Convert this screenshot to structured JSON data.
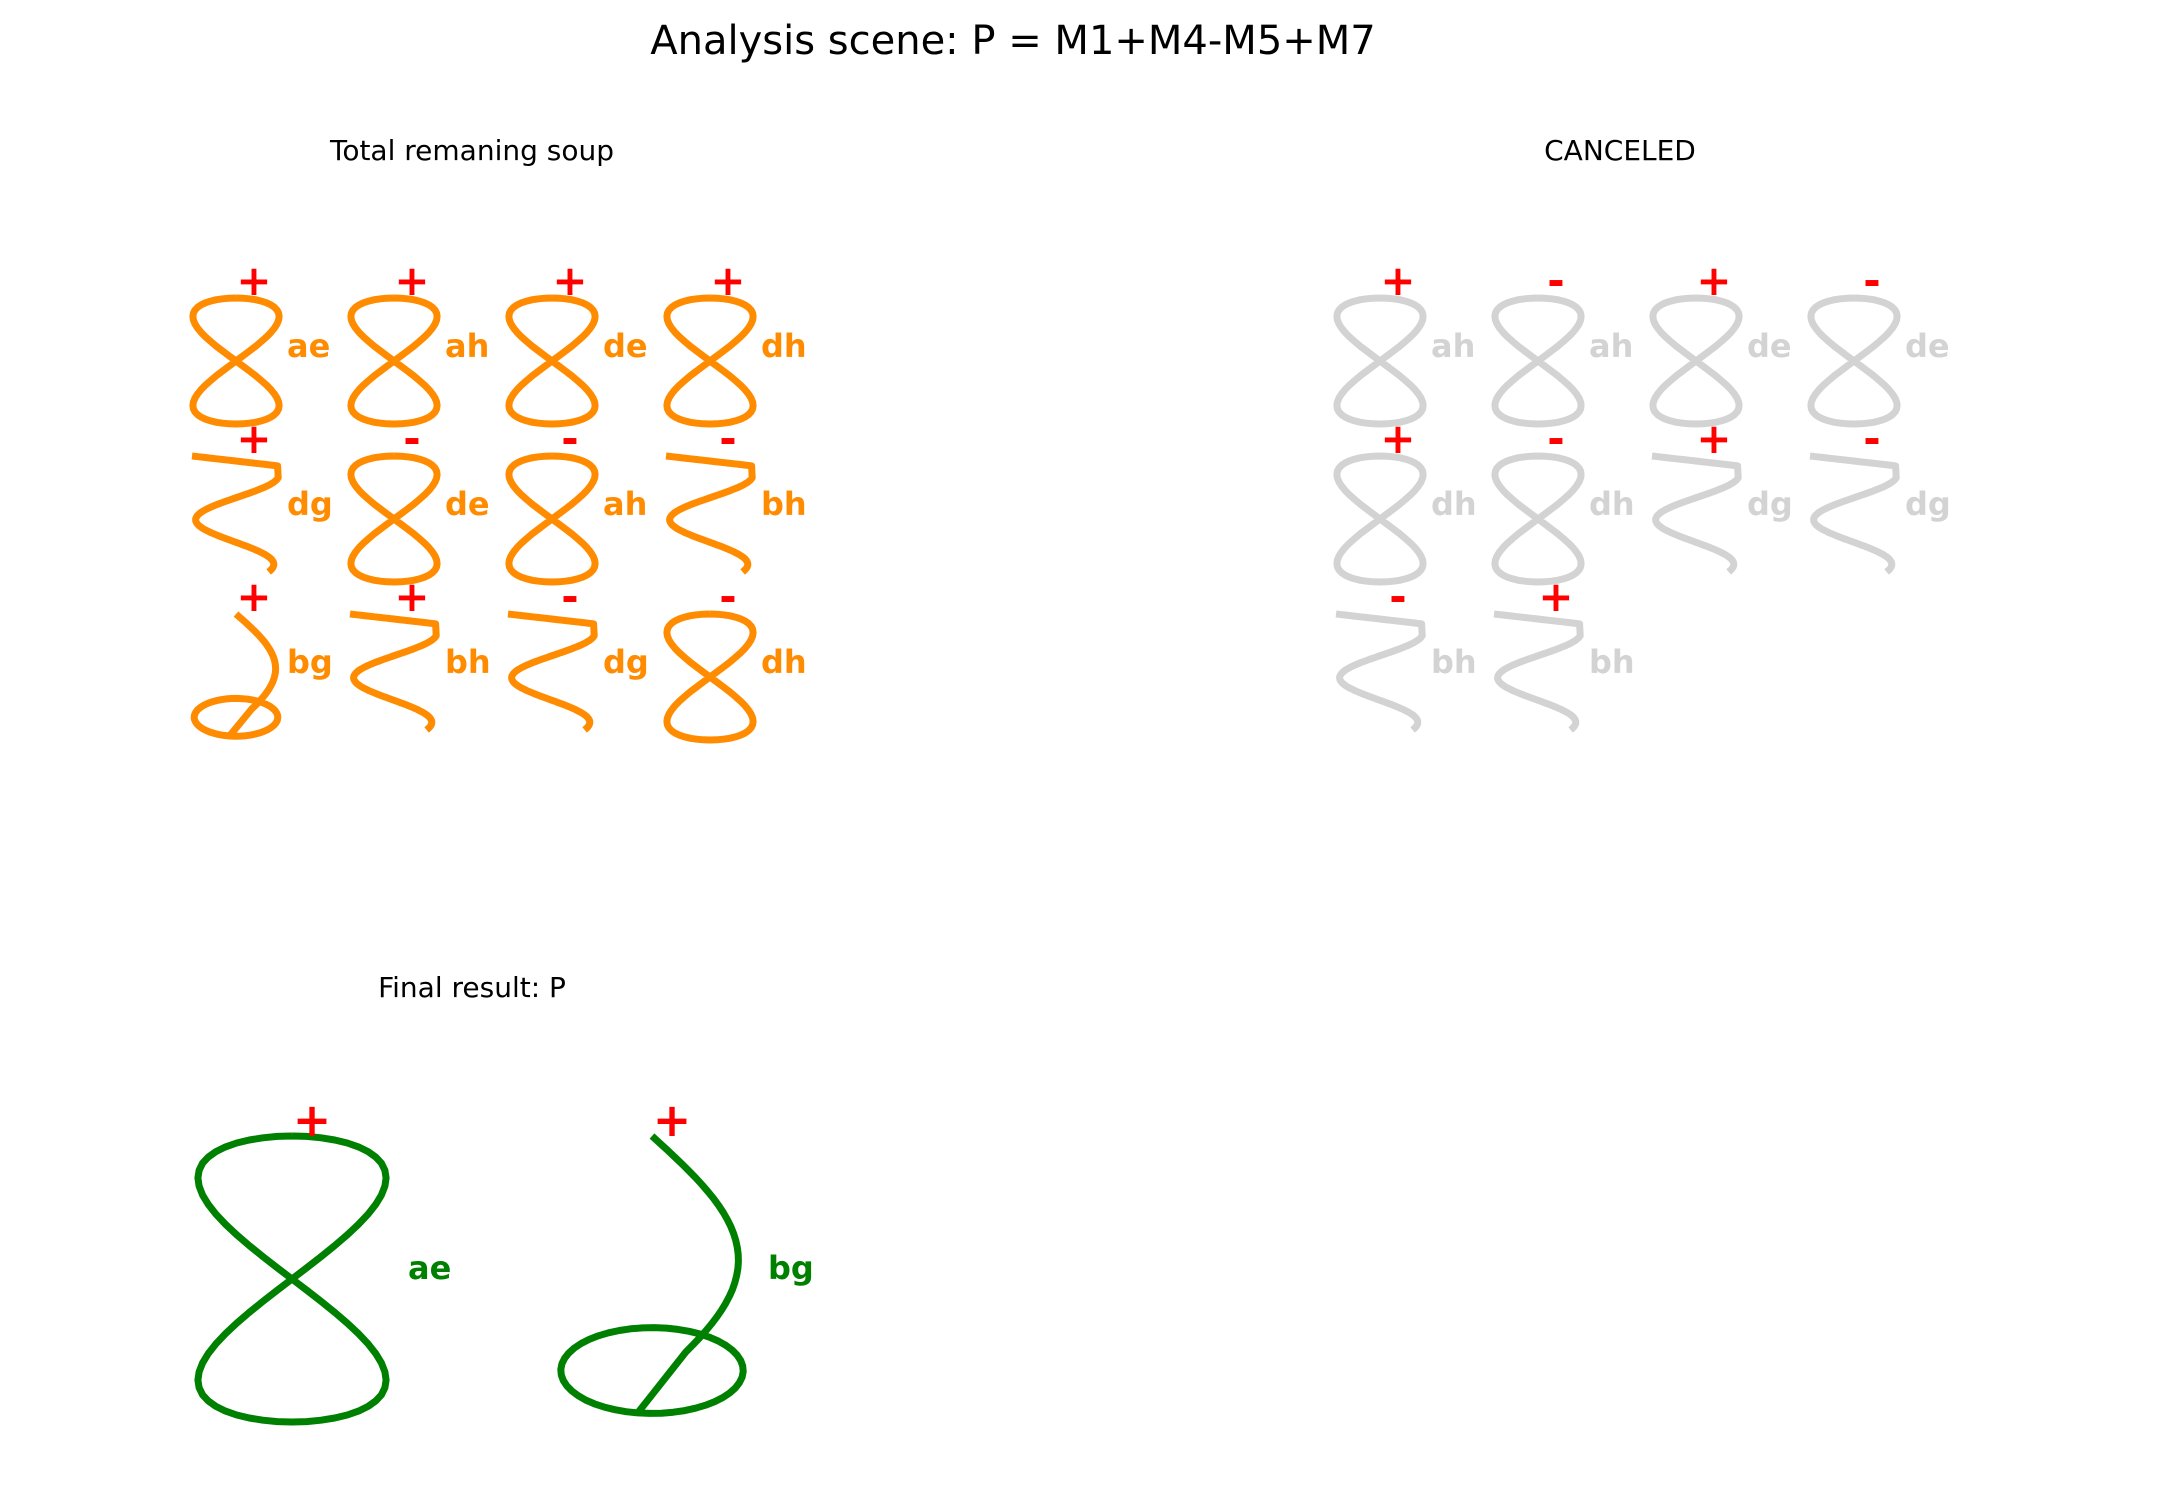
{
  "title": "Analysis scene: P = M1+M4-M5+M7",
  "colors": {
    "soup": "#ff8c00",
    "canceled": "#d3d3d3",
    "result": "#008000",
    "sign": "#ff0000",
    "text": "#000000"
  },
  "panels": [
    {
      "id": "soup",
      "title": "Total remaning soup",
      "color_key": "soup",
      "items": [
        {
          "sign": "+",
          "label": "ae",
          "shape": "figure8"
        },
        {
          "sign": "+",
          "label": "ah",
          "shape": "figure8"
        },
        {
          "sign": "+",
          "label": "de",
          "shape": "figure8"
        },
        {
          "sign": "+",
          "label": "dh",
          "shape": "figure8"
        },
        {
          "sign": "+",
          "label": "dg",
          "shape": "zigzag"
        },
        {
          "sign": "-",
          "label": "de",
          "shape": "figure8"
        },
        {
          "sign": "-",
          "label": "ah",
          "shape": "figure8"
        },
        {
          "sign": "-",
          "label": "bh",
          "shape": "zigzag"
        },
        {
          "sign": "+",
          "label": "bg",
          "shape": "hook"
        },
        {
          "sign": "+",
          "label": "bh",
          "shape": "zigzag"
        },
        {
          "sign": "-",
          "label": "dg",
          "shape": "zigzag"
        },
        {
          "sign": "-",
          "label": "dh",
          "shape": "figure8"
        }
      ]
    },
    {
      "id": "canceled",
      "title": "CANCELED",
      "color_key": "canceled",
      "items": [
        {
          "sign": "+",
          "label": "ah",
          "shape": "figure8"
        },
        {
          "sign": "-",
          "label": "ah",
          "shape": "figure8"
        },
        {
          "sign": "+",
          "label": "de",
          "shape": "figure8"
        },
        {
          "sign": "-",
          "label": "de",
          "shape": "figure8"
        },
        {
          "sign": "+",
          "label": "dh",
          "shape": "figure8"
        },
        {
          "sign": "-",
          "label": "dh",
          "shape": "figure8"
        },
        {
          "sign": "+",
          "label": "dg",
          "shape": "zigzag"
        },
        {
          "sign": "-",
          "label": "dg",
          "shape": "zigzag"
        },
        {
          "sign": "-",
          "label": "bh",
          "shape": "zigzag"
        },
        {
          "sign": "+",
          "label": "bh",
          "shape": "zigzag"
        }
      ]
    },
    {
      "id": "result",
      "title": "Final result: P",
      "color_key": "result",
      "items": [
        {
          "sign": "+",
          "label": "ae",
          "shape": "figure8"
        },
        {
          "sign": "+",
          "label": "bg",
          "shape": "hook"
        }
      ]
    }
  ]
}
